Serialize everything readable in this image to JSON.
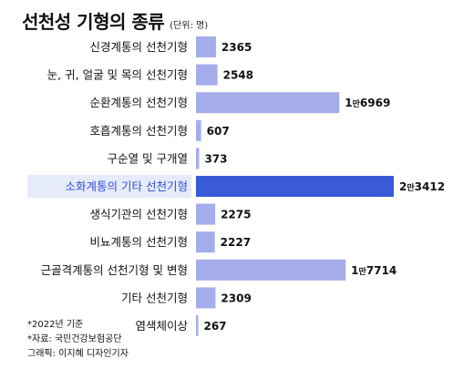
{
  "chart_data": {
    "type": "bar",
    "orientation": "horizontal",
    "title": "선천성 기형의 종류",
    "unit_note": "(단위: 명)",
    "categories": [
      "신경계통의 선천기형",
      "눈, 귀, 얼굴 및 목의 선천기형",
      "순환계통의 선천기형",
      "호흡계통의 선천기형",
      "구순열 및 구개열",
      "소화계통의 기타 선천기형",
      "생식기관의 선천기형",
      "비뇨계통의 선천기형",
      "근골격계통의 선천기형 및 변형",
      "기타 선천기형",
      "염색체이상"
    ],
    "values": [
      2365,
      2548,
      16969,
      607,
      373,
      23412,
      2275,
      2227,
      17714,
      2309,
      267
    ],
    "value_labels": [
      {
        "main": "2365"
      },
      {
        "main": "2548"
      },
      {
        "pre": "1",
        "unit": "만",
        "post": "6969"
      },
      {
        "main": "607"
      },
      {
        "main": "373"
      },
      {
        "pre": "2",
        "unit": "만",
        "post": "3412"
      },
      {
        "main": "2275"
      },
      {
        "main": "2227"
      },
      {
        "pre": "1",
        "unit": "만",
        "post": "7714"
      },
      {
        "main": "2309"
      },
      {
        "main": "267"
      }
    ],
    "highlight_index": 5,
    "xlim": [
      0,
      23412
    ],
    "grid": false,
    "legend": "none"
  },
  "colors": {
    "bar": "#a5aeea",
    "bar_highlight": "#3a5bd9",
    "highlight_band": "#e6ebfb",
    "highlight_text": "#2f4fd8"
  },
  "notes": {
    "year": "*2022년 기준",
    "source": "*자료: 국민건강보험공단",
    "graphic": "그래픽: 이지혜 디자인기자"
  }
}
